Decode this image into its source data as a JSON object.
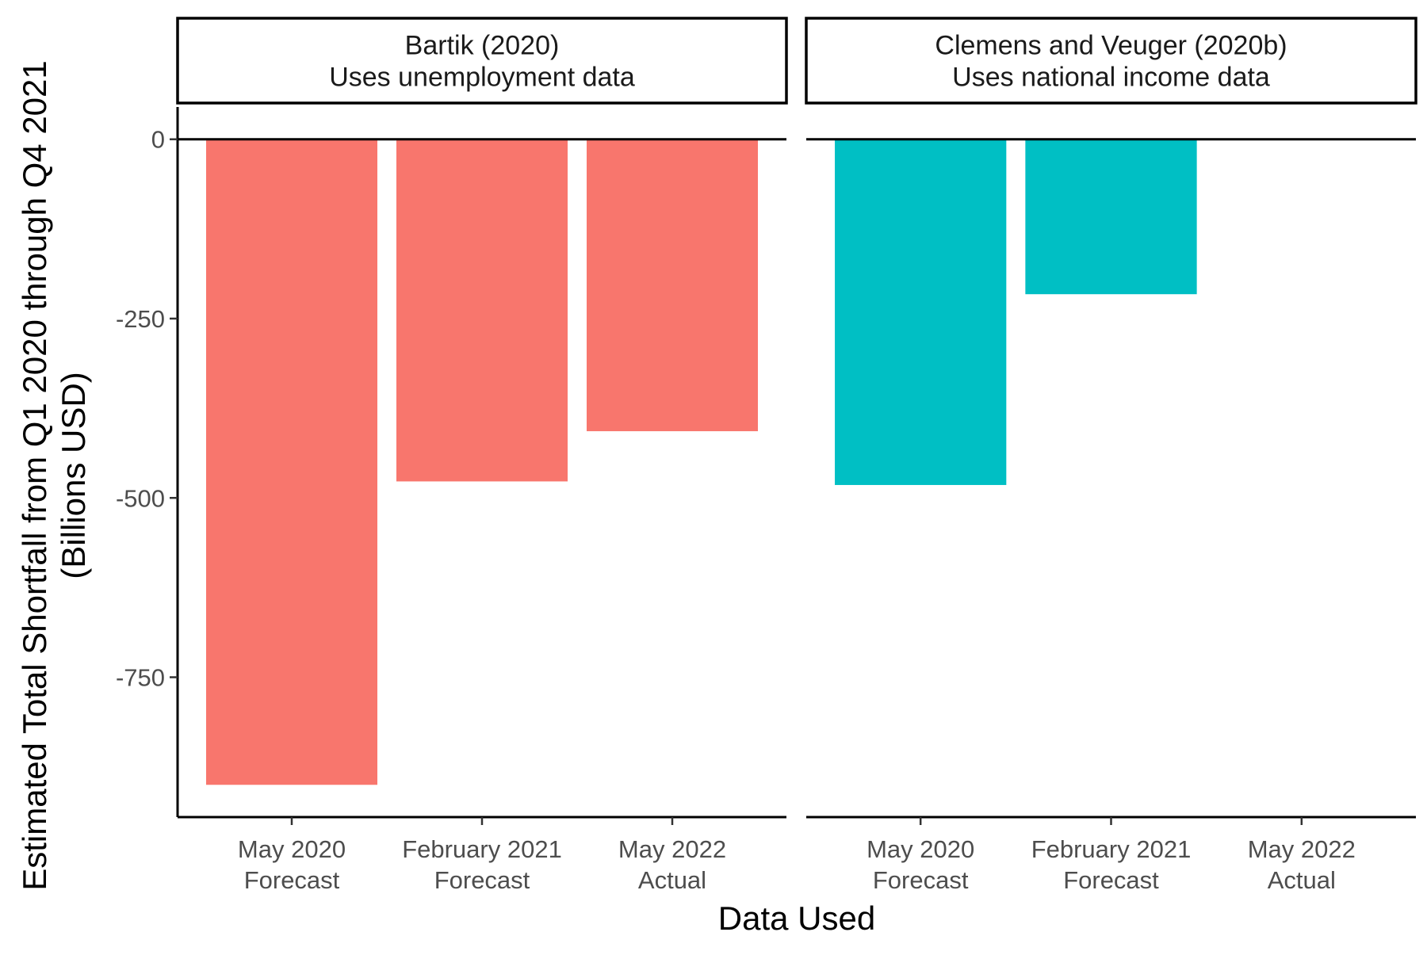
{
  "chart_data": {
    "type": "bar",
    "xlabel": "Data Used",
    "ylabel": [
      "Estimated Total Shortfall from Q1 2020 through Q4 2021",
      "(Billions USD)"
    ],
    "ylim": [
      -945,
      45
    ],
    "yticks": [
      0,
      -250,
      -500,
      -750
    ],
    "ytick_labels": [
      "0",
      "-250",
      "-500",
      "-750"
    ],
    "grid": false,
    "legend": "none",
    "categories": [
      [
        "May 2020",
        "Forecast"
      ],
      [
        "February 2021",
        "Forecast"
      ],
      [
        "May 2022",
        "Actual"
      ]
    ],
    "panels": [
      {
        "strip": [
          "Bartik (2020)",
          "Uses unemployment data"
        ],
        "color": "#F8766D",
        "values": [
          -900,
          -477,
          -407
        ]
      },
      {
        "strip": [
          "Clemens and Veuger (2020b)",
          "Uses national income data"
        ],
        "color": "#00BFC4",
        "values": [
          -482,
          -216,
          null
        ]
      }
    ]
  }
}
